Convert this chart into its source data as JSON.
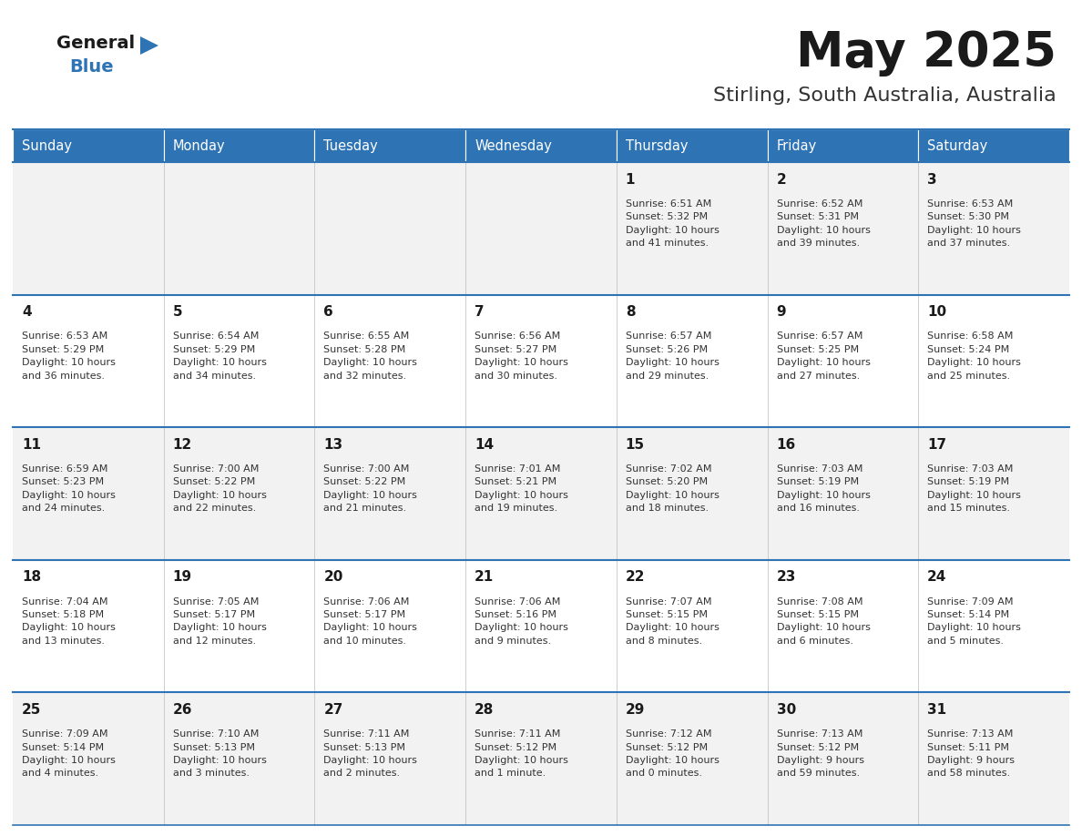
{
  "title": "May 2025",
  "subtitle": "Stirling, South Australia, Australia",
  "header_bg": "#2E74B5",
  "header_text": "#FFFFFF",
  "odd_row_bg": "#F2F2F2",
  "even_row_bg": "#FFFFFF",
  "separator_color": "#2E74B5",
  "day_headers": [
    "Sunday",
    "Monday",
    "Tuesday",
    "Wednesday",
    "Thursday",
    "Friday",
    "Saturday"
  ],
  "logo_general_color": "#1a1a1a",
  "logo_blue_color": "#2E74B5",
  "title_color": "#1a1a1a",
  "subtitle_color": "#333333",
  "cell_text_color": "#333333",
  "cell_day_color": "#1a1a1a",
  "weeks": [
    [
      {
        "day": null,
        "info": null
      },
      {
        "day": null,
        "info": null
      },
      {
        "day": null,
        "info": null
      },
      {
        "day": null,
        "info": null
      },
      {
        "day": 1,
        "info": "Sunrise: 6:51 AM\nSunset: 5:32 PM\nDaylight: 10 hours\nand 41 minutes."
      },
      {
        "day": 2,
        "info": "Sunrise: 6:52 AM\nSunset: 5:31 PM\nDaylight: 10 hours\nand 39 minutes."
      },
      {
        "day": 3,
        "info": "Sunrise: 6:53 AM\nSunset: 5:30 PM\nDaylight: 10 hours\nand 37 minutes."
      }
    ],
    [
      {
        "day": 4,
        "info": "Sunrise: 6:53 AM\nSunset: 5:29 PM\nDaylight: 10 hours\nand 36 minutes."
      },
      {
        "day": 5,
        "info": "Sunrise: 6:54 AM\nSunset: 5:29 PM\nDaylight: 10 hours\nand 34 minutes."
      },
      {
        "day": 6,
        "info": "Sunrise: 6:55 AM\nSunset: 5:28 PM\nDaylight: 10 hours\nand 32 minutes."
      },
      {
        "day": 7,
        "info": "Sunrise: 6:56 AM\nSunset: 5:27 PM\nDaylight: 10 hours\nand 30 minutes."
      },
      {
        "day": 8,
        "info": "Sunrise: 6:57 AM\nSunset: 5:26 PM\nDaylight: 10 hours\nand 29 minutes."
      },
      {
        "day": 9,
        "info": "Sunrise: 6:57 AM\nSunset: 5:25 PM\nDaylight: 10 hours\nand 27 minutes."
      },
      {
        "day": 10,
        "info": "Sunrise: 6:58 AM\nSunset: 5:24 PM\nDaylight: 10 hours\nand 25 minutes."
      }
    ],
    [
      {
        "day": 11,
        "info": "Sunrise: 6:59 AM\nSunset: 5:23 PM\nDaylight: 10 hours\nand 24 minutes."
      },
      {
        "day": 12,
        "info": "Sunrise: 7:00 AM\nSunset: 5:22 PM\nDaylight: 10 hours\nand 22 minutes."
      },
      {
        "day": 13,
        "info": "Sunrise: 7:00 AM\nSunset: 5:22 PM\nDaylight: 10 hours\nand 21 minutes."
      },
      {
        "day": 14,
        "info": "Sunrise: 7:01 AM\nSunset: 5:21 PM\nDaylight: 10 hours\nand 19 minutes."
      },
      {
        "day": 15,
        "info": "Sunrise: 7:02 AM\nSunset: 5:20 PM\nDaylight: 10 hours\nand 18 minutes."
      },
      {
        "day": 16,
        "info": "Sunrise: 7:03 AM\nSunset: 5:19 PM\nDaylight: 10 hours\nand 16 minutes."
      },
      {
        "day": 17,
        "info": "Sunrise: 7:03 AM\nSunset: 5:19 PM\nDaylight: 10 hours\nand 15 minutes."
      }
    ],
    [
      {
        "day": 18,
        "info": "Sunrise: 7:04 AM\nSunset: 5:18 PM\nDaylight: 10 hours\nand 13 minutes."
      },
      {
        "day": 19,
        "info": "Sunrise: 7:05 AM\nSunset: 5:17 PM\nDaylight: 10 hours\nand 12 minutes."
      },
      {
        "day": 20,
        "info": "Sunrise: 7:06 AM\nSunset: 5:17 PM\nDaylight: 10 hours\nand 10 minutes."
      },
      {
        "day": 21,
        "info": "Sunrise: 7:06 AM\nSunset: 5:16 PM\nDaylight: 10 hours\nand 9 minutes."
      },
      {
        "day": 22,
        "info": "Sunrise: 7:07 AM\nSunset: 5:15 PM\nDaylight: 10 hours\nand 8 minutes."
      },
      {
        "day": 23,
        "info": "Sunrise: 7:08 AM\nSunset: 5:15 PM\nDaylight: 10 hours\nand 6 minutes."
      },
      {
        "day": 24,
        "info": "Sunrise: 7:09 AM\nSunset: 5:14 PM\nDaylight: 10 hours\nand 5 minutes."
      }
    ],
    [
      {
        "day": 25,
        "info": "Sunrise: 7:09 AM\nSunset: 5:14 PM\nDaylight: 10 hours\nand 4 minutes."
      },
      {
        "day": 26,
        "info": "Sunrise: 7:10 AM\nSunset: 5:13 PM\nDaylight: 10 hours\nand 3 minutes."
      },
      {
        "day": 27,
        "info": "Sunrise: 7:11 AM\nSunset: 5:13 PM\nDaylight: 10 hours\nand 2 minutes."
      },
      {
        "day": 28,
        "info": "Sunrise: 7:11 AM\nSunset: 5:12 PM\nDaylight: 10 hours\nand 1 minute."
      },
      {
        "day": 29,
        "info": "Sunrise: 7:12 AM\nSunset: 5:12 PM\nDaylight: 10 hours\nand 0 minutes."
      },
      {
        "day": 30,
        "info": "Sunrise: 7:13 AM\nSunset: 5:12 PM\nDaylight: 9 hours\nand 59 minutes."
      },
      {
        "day": 31,
        "info": "Sunrise: 7:13 AM\nSunset: 5:11 PM\nDaylight: 9 hours\nand 58 minutes."
      }
    ]
  ]
}
